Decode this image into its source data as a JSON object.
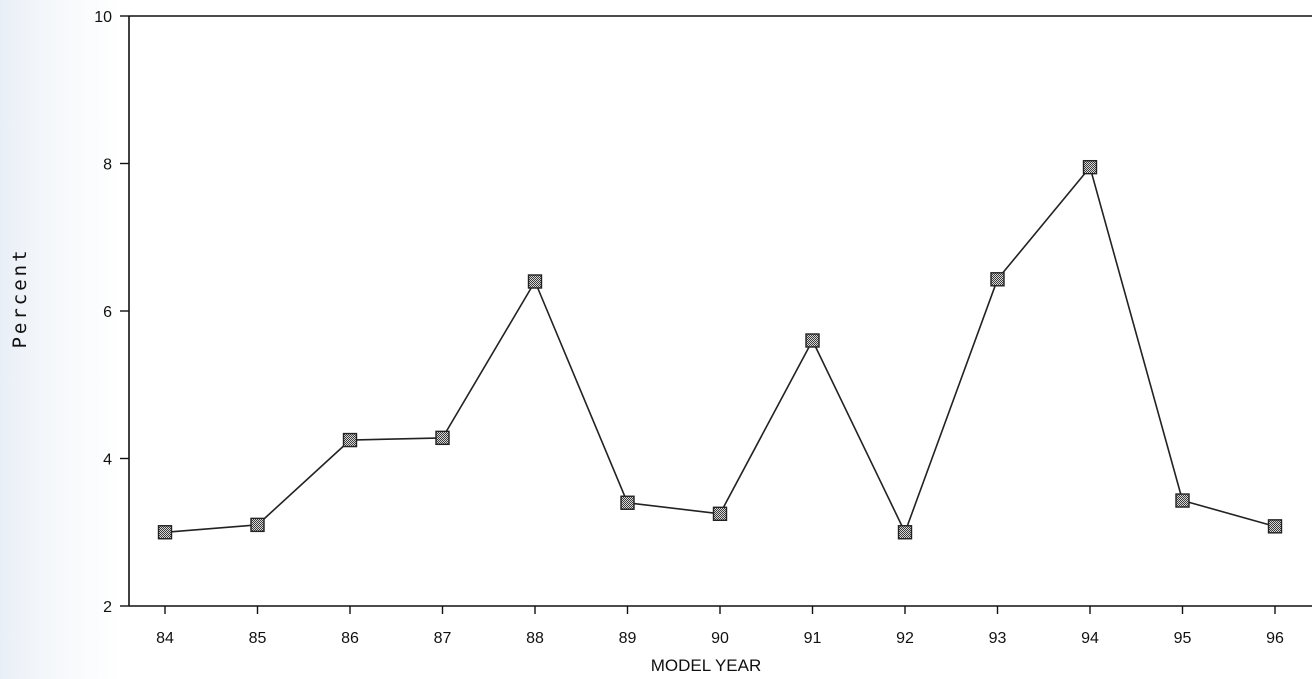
{
  "chart_data": {
    "type": "line",
    "title": "",
    "xlabel": "MODEL YEAR",
    "ylabel": "Percent",
    "categories": [
      "84",
      "85",
      "86",
      "87",
      "88",
      "89",
      "90",
      "91",
      "92",
      "93",
      "94",
      "95",
      "96"
    ],
    "series": [
      {
        "values": [
          3.0,
          3.1,
          4.25,
          4.28,
          6.4,
          3.4,
          3.25,
          5.6,
          3.0,
          6.43,
          7.95,
          3.43,
          3.08
        ]
      }
    ],
    "ylim": [
      2,
      10
    ],
    "yticks": [
      "2",
      "4",
      "6",
      "8",
      "10"
    ],
    "grid": false,
    "marker": "square",
    "colors": {
      "line": "#222222",
      "marker_fill": "#6b6b6b",
      "axis": "#111111"
    }
  }
}
